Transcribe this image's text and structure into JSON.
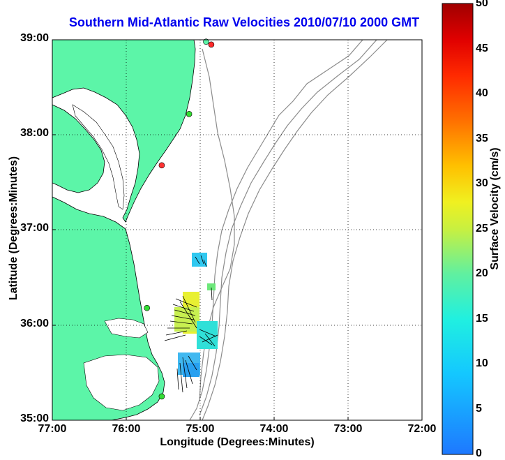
{
  "title": "Southern Mid-Atlantic Raw Velocities 2010/07/10 2000 GMT",
  "map": {
    "xlabel": "Longitude (Degrees:Minutes)",
    "ylabel": "Latitude (Degrees:Minutes)",
    "x_ticks": [
      "77:00",
      "76:00",
      "75:00",
      "74:00",
      "73:00",
      "72:00"
    ],
    "y_ticks": [
      "39:00",
      "38:00",
      "37:00",
      "36:00",
      "35:00"
    ],
    "lon_range": [
      -77,
      -72
    ],
    "lat_range": [
      35,
      39
    ],
    "land_color": "#5cf5a8",
    "contour_color": "#8c8c8c",
    "title_color": "#0000ee"
  },
  "colorbar": {
    "label": "Surface Velocity (cm/s)",
    "ticks": [
      "50",
      "45",
      "40",
      "35",
      "30",
      "25",
      "20",
      "15",
      "10",
      "5",
      "0"
    ],
    "range": [
      0,
      50
    ]
  },
  "stations": [
    {
      "lon": -74.85,
      "lat": 38.95,
      "color": "#ff2a2a"
    },
    {
      "lon": -74.92,
      "lat": 38.98,
      "color": "#5cf5a8"
    },
    {
      "lon": -75.15,
      "lat": 38.22,
      "color": "#33dd33"
    },
    {
      "lon": -75.52,
      "lat": 37.68,
      "color": "#ff3333"
    },
    {
      "lon": -75.72,
      "lat": 36.18,
      "color": "#33dd33"
    },
    {
      "lon": -75.52,
      "lat": 35.25,
      "color": "#33dd33"
    }
  ]
}
